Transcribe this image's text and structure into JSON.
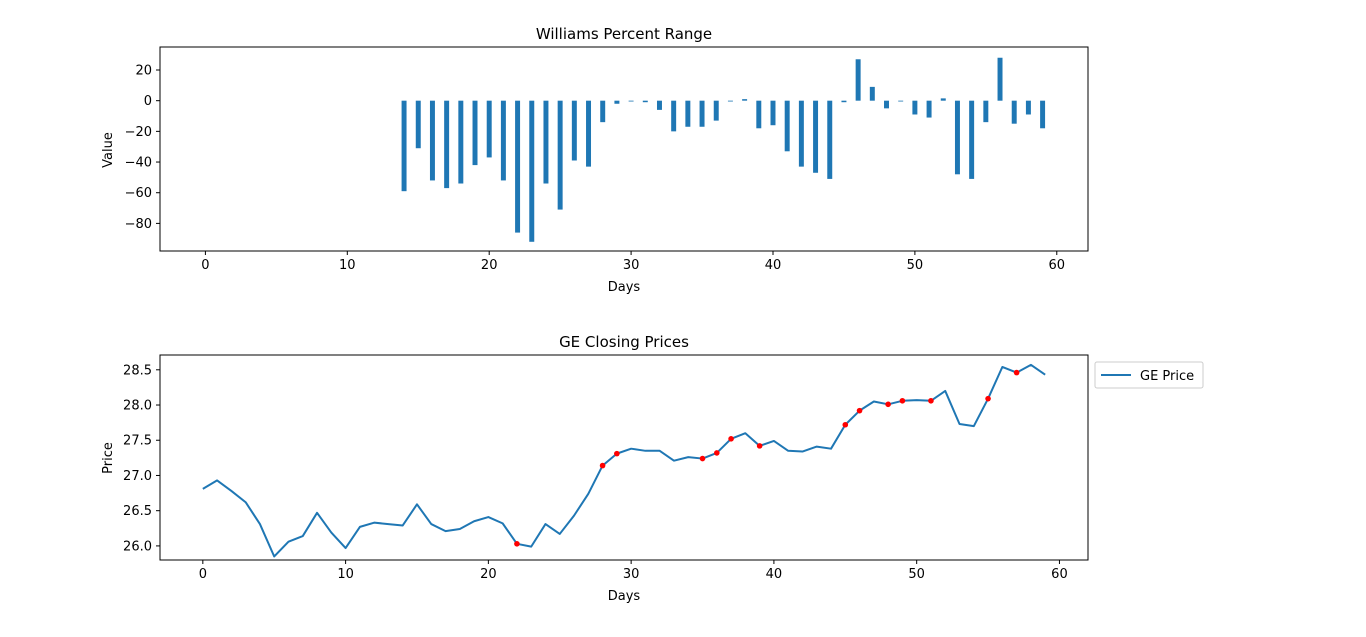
{
  "chart_data": [
    {
      "type": "bar",
      "title": "Williams Percent Range",
      "xlabel": "Days",
      "ylabel": "Value",
      "xlim": [
        -3.2,
        62.2
      ],
      "ylim": [
        -98,
        35
      ],
      "xticks": [
        0,
        10,
        20,
        30,
        40,
        50,
        60
      ],
      "yticks": [
        -80,
        -60,
        -40,
        -20,
        0,
        20
      ],
      "ytick_labels": [
        "−80",
        "−60",
        "−40",
        "−20",
        "0",
        "20"
      ],
      "bar_width": 0.35,
      "color": "#1f77b4",
      "grid": false,
      "x": [
        14,
        15,
        16,
        17,
        18,
        19,
        20,
        21,
        22,
        23,
        24,
        25,
        26,
        27,
        28,
        29,
        30,
        31,
        32,
        33,
        34,
        35,
        36,
        37,
        38,
        39,
        40,
        41,
        42,
        43,
        44,
        45,
        46,
        47,
        48,
        49,
        50,
        51,
        52,
        53,
        54,
        55,
        56,
        57,
        58,
        59
      ],
      "values": [
        -59,
        -31,
        -52,
        -57,
        -54,
        -42,
        -37,
        -52,
        -86,
        -92,
        -54,
        -71,
        -39,
        -43,
        -14,
        -2,
        0,
        -1,
        -6,
        -20,
        -17,
        -17,
        -13,
        0,
        1,
        -18,
        -16,
        -33,
        -43,
        -47,
        -51,
        -1,
        27,
        9,
        -5,
        -0.5,
        -9,
        -11,
        1.5,
        -48,
        -51,
        -14,
        28,
        -15,
        -9,
        -18
      ]
    },
    {
      "type": "line",
      "title": "GE Closing Prices",
      "xlabel": "Days",
      "ylabel": "Price",
      "xlim": [
        -3.0,
        62.0
      ],
      "ylim": [
        25.8,
        28.71
      ],
      "xticks": [
        0,
        10,
        20,
        30,
        40,
        50,
        60
      ],
      "yticks": [
        26.0,
        26.5,
        27.0,
        27.5,
        28.0,
        28.5
      ],
      "ytick_labels": [
        "26.0",
        "26.5",
        "27.0",
        "27.5",
        "28.0",
        "28.5"
      ],
      "legend_position": "outside-upper-right",
      "grid": false,
      "series": [
        {
          "name": "GE Price",
          "color": "#1f77b4",
          "x": [
            0,
            1,
            2,
            3,
            4,
            5,
            6,
            7,
            8,
            9,
            10,
            11,
            12,
            13,
            14,
            15,
            16,
            17,
            18,
            19,
            20,
            21,
            22,
            23,
            24,
            25,
            26,
            27,
            28,
            29,
            30,
            31,
            32,
            33,
            34,
            35,
            36,
            37,
            38,
            39,
            40,
            41,
            42,
            43,
            44,
            45,
            46,
            47,
            48,
            49,
            50,
            51,
            52,
            53,
            54,
            55,
            56,
            57,
            58,
            59
          ],
          "values": [
            26.81,
            26.93,
            26.78,
            26.62,
            26.31,
            25.85,
            26.06,
            26.14,
            26.47,
            26.19,
            25.97,
            26.27,
            26.33,
            26.31,
            26.29,
            26.59,
            26.31,
            26.21,
            26.24,
            26.35,
            26.41,
            26.32,
            26.03,
            25.99,
            26.31,
            26.17,
            26.43,
            26.74,
            27.14,
            27.31,
            27.38,
            27.35,
            27.35,
            27.21,
            27.26,
            27.24,
            27.32,
            27.52,
            27.6,
            27.42,
            27.49,
            27.35,
            27.34,
            27.41,
            27.38,
            27.72,
            27.92,
            28.05,
            28.01,
            28.06,
            28.07,
            28.06,
            28.2,
            27.73,
            27.7,
            28.09,
            28.54,
            28.46,
            28.57,
            28.43
          ]
        },
        {
          "name": "",
          "type": "scatter",
          "color": "#ff0000",
          "x": [
            22,
            28,
            29,
            35,
            36,
            37,
            39,
            45,
            46,
            48,
            49,
            51,
            55,
            57
          ],
          "values": [
            26.03,
            27.14,
            27.31,
            27.24,
            27.32,
            27.52,
            27.42,
            27.72,
            27.92,
            28.01,
            28.06,
            28.06,
            28.09,
            28.46
          ]
        }
      ]
    }
  ]
}
